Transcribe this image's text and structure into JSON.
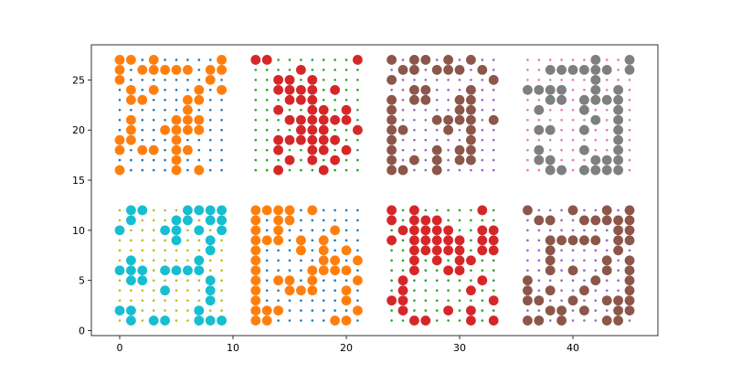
{
  "chart_data": {
    "type": "scatter",
    "title": "",
    "xlabel": "",
    "ylabel": "",
    "xlim": [
      -2.5,
      47.5
    ],
    "ylim": [
      -0.5,
      28.5
    ],
    "x_ticks": [
      0,
      10,
      20,
      30,
      40
    ],
    "y_ticks": [
      0,
      5,
      10,
      15,
      20,
      25
    ],
    "grid": false,
    "legend": "none",
    "panels": [
      {
        "x_offset": 0,
        "y_offset": 16,
        "small_color": "#1f77b4",
        "big_color": "#ff7f0e",
        "filled": [
          "##.#.....#",
          "#.#####.##",
          "#.......#.",
          ".#.#...#.#",
          ".##...##..",
          "......#...",
          ".#...###..",
          ".#..####..",
          "##...#....",
          "#.##.##...",
          ".....#....",
          "#....#.#.."
        ]
      },
      {
        "x_offset": 12,
        "y_offset": 16,
        "small_color": "#2ca02c",
        "big_color": "#d62728",
        "filled": [
          "##.......#",
          "....#.....",
          "..##.#....",
          "..####.#..",
          "...###....",
          "..#..##.#.",
          "...######.",
          "....###..#",
          "..######..",
          "..#..##.#.",
          "...#.#.#..",
          "..#...#..."
        ]
      },
      {
        "x_offset": 24,
        "y_offset": 16,
        "small_color": "#9467bd",
        "big_color": "#8c564b",
        "filled": [
          "#.##.#.#..",
          ".##.###.#.",
          "#........#",
          "..##...#..",
          "#.##..##..",
          "#.....##..",
          "#...####.#",
          "##...#.#..",
          "#......#..",
          "#...#.##..",
          "#.#.#.##..",
          "##..#....."
        ]
      },
      {
        "x_offset": 36,
        "y_offset": 16,
        "small_color": "#e377c2",
        "big_color": "#7f7f7f",
        "filled": [
          "......#..#",
          "..######.#",
          "......#...",
          "####..#.#.",
          "..##.####.",
          ".#...#..#.",
          "......#.#.",
          ".##..#..#.",
          "........#.",
          ".#...#..#.",
          ".##...###.",
          "..##.####."
        ]
      },
      {
        "x_offset": 0,
        "y_offset": 1,
        "small_color": "#bcbd22",
        "big_color": "#17becf",
        "filled": [
          ".##...####",
          ".#...##.##",
          "#...##.#.#",
          ".....#..#.",
          "........#.",
          ".#.....#..",
          "###.####..",
          ".##.....#.",
          "....#...#.",
          "........#.",
          "##.....#..",
          ".#.##..###"
        ]
      },
      {
        "x_offset": 12,
        "y_offset": 1,
        "small_color": "#1f77b4",
        "big_color": "#ff7f0e",
        "filled": [
          "####.#....",
          "#.##......",
          "#.#....#..",
          "###.#.#...",
          "#...#.#.#.",
          "#.....##.#",
          "#....####.",
          "#.##.#...#",
          "#..###..#.",
          "#.......#.",
          "###......#",
          "##.....##."
        ]
      },
      {
        "x_offset": 24,
        "y_offset": 1,
        "small_color": "#2ca02c",
        "big_color": "#d62728",
        "filled": [
          "#.#.....#.",
          "#.###.....",
          ".#####..##",
          "#.#####.##",
          "..#####.##",
          "..#.#.##..",
          "..#..##...",
          ".#......#.",
          ".#.....#..",
          "##.......#",
          ".#...#.#..",
          "..##...#.#"
        ]
      },
      {
        "x_offset": 36,
        "y_offset": 1,
        "small_color": "#9467bd",
        "big_color": "#8c564b",
        "filled": [
          "#...#..#.#",
          ".##..#####",
          "........##",
          "..#####.##",
          "..#.....#.",
          "..#....#.#",
          "..#.#..#.#",
          "#.....#..#",
          "#.#..#...#",
          "##..#..###",
          "..##.#..##",
          "##.#...##."
        ]
      }
    ]
  }
}
